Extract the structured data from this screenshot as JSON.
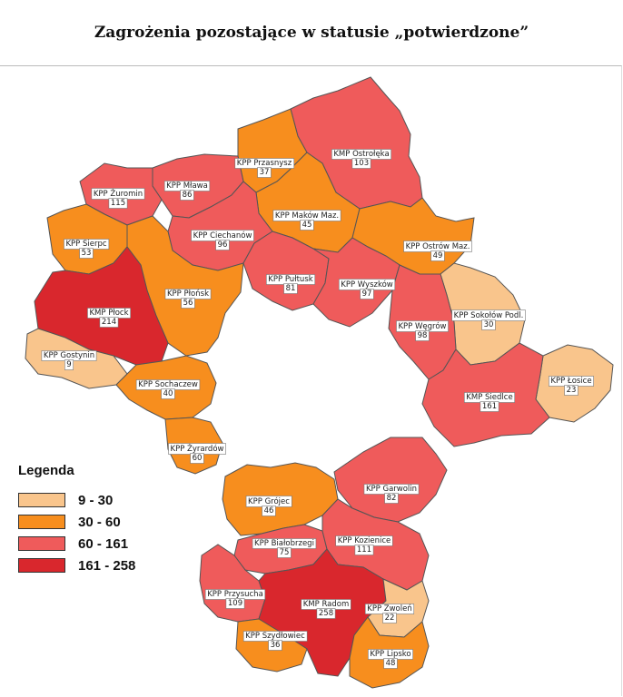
{
  "title": "Zagrożenia pozostające w statusie „potwierdzone”",
  "colors": {
    "c1": "#f9c58c",
    "c2": "#f78e1e",
    "c3": "#ef5b5b",
    "c4": "#d9272d",
    "border": "#555555",
    "background": "#ffffff"
  },
  "legend": {
    "title": "Legenda",
    "items": [
      {
        "label": "9 - 30",
        "color": "#f9c58c"
      },
      {
        "label": "30 - 60",
        "color": "#f78e1e"
      },
      {
        "label": "60 - 161",
        "color": "#ef5b5b"
      },
      {
        "label": "161 - 258",
        "color": "#d9272d"
      }
    ]
  },
  "districts": [
    {
      "name": "KMP Ostrołęka",
      "value": "103",
      "cls": "c3"
    },
    {
      "name": "KPP Przasnysz",
      "value": "37",
      "cls": "c2"
    },
    {
      "name": "KPP Mława",
      "value": "86",
      "cls": "c3"
    },
    {
      "name": "KPP Żuromin",
      "value": "115",
      "cls": "c3"
    },
    {
      "name": "KPP Maków Maz.",
      "value": "45",
      "cls": "c2"
    },
    {
      "name": "KPP Ciechanów",
      "value": "96",
      "cls": "c3"
    },
    {
      "name": "KPP Sierpc",
      "value": "53",
      "cls": "c2"
    },
    {
      "name": "KPP Ostrów Maz.",
      "value": "49",
      "cls": "c2"
    },
    {
      "name": "KPP Pułtusk",
      "value": "81",
      "cls": "c3"
    },
    {
      "name": "KPP Wyszków",
      "value": "97",
      "cls": "c3"
    },
    {
      "name": "KPP Płońsk",
      "value": "56",
      "cls": "c2"
    },
    {
      "name": "KMP Płock",
      "value": "214",
      "cls": "c4"
    },
    {
      "name": "KPP Gostynin",
      "value": "9",
      "cls": "c1"
    },
    {
      "name": "KPP Sokołów Podl.",
      "value": "30",
      "cls": "c1"
    },
    {
      "name": "KPP Węgrów",
      "value": "98",
      "cls": "c3"
    },
    {
      "name": "KPP Łosice",
      "value": "23",
      "cls": "c1"
    },
    {
      "name": "KMP Siedlce",
      "value": "161",
      "cls": "c3"
    },
    {
      "name": "KPP Sochaczew",
      "value": "40",
      "cls": "c2"
    },
    {
      "name": "KPP Żyrardów",
      "value": "60",
      "cls": "c2"
    },
    {
      "name": "KPP Garwolin",
      "value": "82",
      "cls": "c3"
    },
    {
      "name": "KPP Grójec",
      "value": "46",
      "cls": "c2"
    },
    {
      "name": "KPP Białobrzegi",
      "value": "75",
      "cls": "c3"
    },
    {
      "name": "KPP Kozienice",
      "value": "111",
      "cls": "c3"
    },
    {
      "name": "KPP Przysucha",
      "value": "109",
      "cls": "c3"
    },
    {
      "name": "KMP Radom",
      "value": "258",
      "cls": "c4"
    },
    {
      "name": "KPP Zwoleń",
      "value": "22",
      "cls": "c1"
    },
    {
      "name": "KPP Szydłowiec",
      "value": "36",
      "cls": "c2"
    },
    {
      "name": "KPP Lipsko",
      "value": "48",
      "cls": "c2"
    }
  ]
}
